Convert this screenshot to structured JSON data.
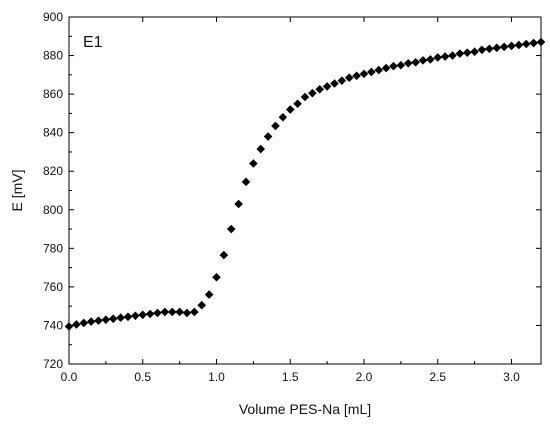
{
  "chart_data": {
    "type": "scatter",
    "title": "",
    "panel_label": "E1",
    "xlabel": "Volume PES-Na [mL]",
    "ylabel": "E [mV]",
    "xlim": [
      0.0,
      3.2
    ],
    "ylim": [
      720,
      900
    ],
    "x_ticks": [
      0.0,
      0.5,
      1.0,
      1.5,
      2.0,
      2.5,
      3.0
    ],
    "x_tick_labels": [
      "0.0",
      "0.5",
      "1.0",
      "1.5",
      "2.0",
      "2.5",
      "3.0"
    ],
    "y_ticks": [
      720,
      740,
      760,
      780,
      800,
      820,
      840,
      860,
      880,
      900
    ],
    "y_tick_labels": [
      "720",
      "740",
      "760",
      "780",
      "800",
      "820",
      "840",
      "860",
      "880",
      "900"
    ],
    "grid": false,
    "legend": "none",
    "marker": "diamond",
    "marker_color": "#000000",
    "series": [
      {
        "x": [
          0.0,
          0.05,
          0.1,
          0.15,
          0.2,
          0.25,
          0.3,
          0.35,
          0.4,
          0.45,
          0.5,
          0.55,
          0.6,
          0.65,
          0.7,
          0.75,
          0.8,
          0.85,
          0.9,
          0.95,
          1.0,
          1.05,
          1.1,
          1.15,
          1.2,
          1.25,
          1.3,
          1.35,
          1.4,
          1.45,
          1.5,
          1.55,
          1.6,
          1.65,
          1.7,
          1.75,
          1.8,
          1.85,
          1.9,
          1.95,
          2.0,
          2.05,
          2.1,
          2.15,
          2.2,
          2.25,
          2.3,
          2.35,
          2.4,
          2.45,
          2.5,
          2.55,
          2.6,
          2.65,
          2.7,
          2.75,
          2.8,
          2.85,
          2.9,
          2.95,
          3.0,
          3.05,
          3.1,
          3.15,
          3.2
        ],
        "y": [
          739.5,
          740.5,
          741.3,
          742.0,
          742.5,
          743.0,
          743.5,
          744.0,
          744.5,
          745.0,
          745.5,
          746.0,
          746.5,
          747.0,
          747.0,
          747.0,
          746.5,
          747.0,
          750.5,
          756.0,
          765.0,
          776.5,
          790.0,
          803.0,
          814.5,
          824.0,
          831.5,
          838.0,
          843.5,
          848.0,
          852.0,
          855.0,
          858.5,
          860.5,
          862.5,
          864.0,
          865.5,
          867.0,
          868.5,
          869.5,
          870.5,
          871.5,
          872.5,
          873.5,
          874.5,
          875.0,
          876.0,
          876.5,
          877.5,
          878.0,
          879.0,
          879.5,
          880.0,
          881.0,
          881.5,
          882.0,
          883.0,
          883.5,
          884.0,
          884.5,
          885.0,
          885.5,
          886.0,
          886.5,
          887.0
        ]
      }
    ]
  }
}
